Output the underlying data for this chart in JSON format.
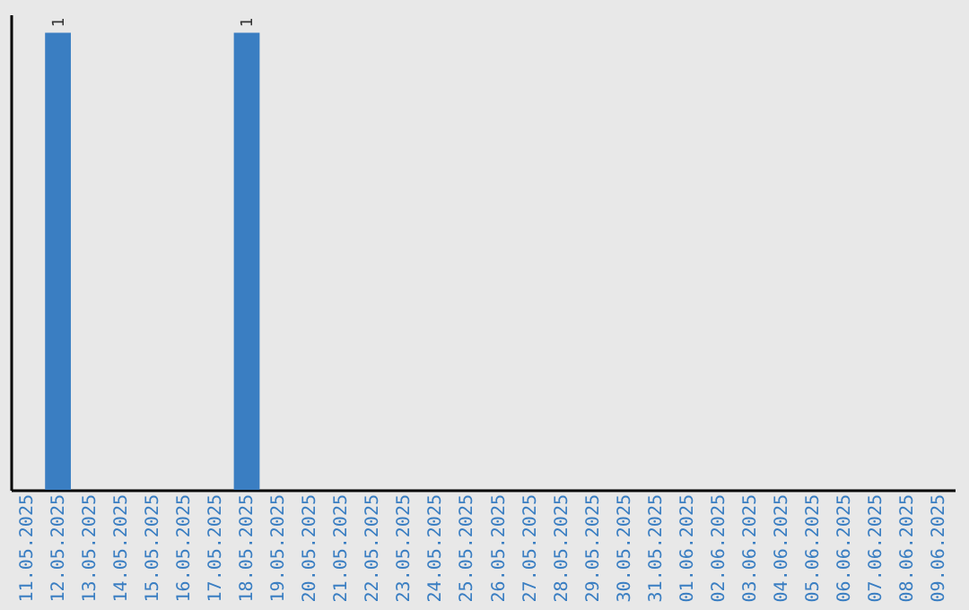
{
  "chart_data": {
    "type": "bar",
    "categories": [
      "11.05.2025",
      "12.05.2025",
      "13.05.2025",
      "14.05.2025",
      "15.05.2025",
      "16.05.2025",
      "17.05.2025",
      "18.05.2025",
      "19.05.2025",
      "20.05.2025",
      "21.05.2025",
      "22.05.2025",
      "23.05.2025",
      "24.05.2025",
      "25.05.2025",
      "26.05.2025",
      "27.05.2025",
      "28.05.2025",
      "29.05.2025",
      "30.05.2025",
      "31.05.2025",
      "01.06.2025",
      "02.06.2025",
      "03.06.2025",
      "04.06.2025",
      "05.06.2025",
      "06.06.2025",
      "07.06.2025",
      "08.06.2025",
      "09.06.2025"
    ],
    "values": [
      0,
      1,
      0,
      0,
      0,
      0,
      0,
      1,
      0,
      0,
      0,
      0,
      0,
      0,
      0,
      0,
      0,
      0,
      0,
      0,
      0,
      0,
      0,
      0,
      0,
      0,
      0,
      0,
      0,
      0
    ],
    "value_labels": [
      null,
      "1",
      null,
      null,
      null,
      null,
      null,
      "1",
      null,
      null,
      null,
      null,
      null,
      null,
      null,
      null,
      null,
      null,
      null,
      null,
      null,
      null,
      null,
      null,
      null,
      null,
      null,
      null,
      null,
      null
    ],
    "color": "#3a7ec2",
    "tick_labels": "x",
    "grid": false
  }
}
